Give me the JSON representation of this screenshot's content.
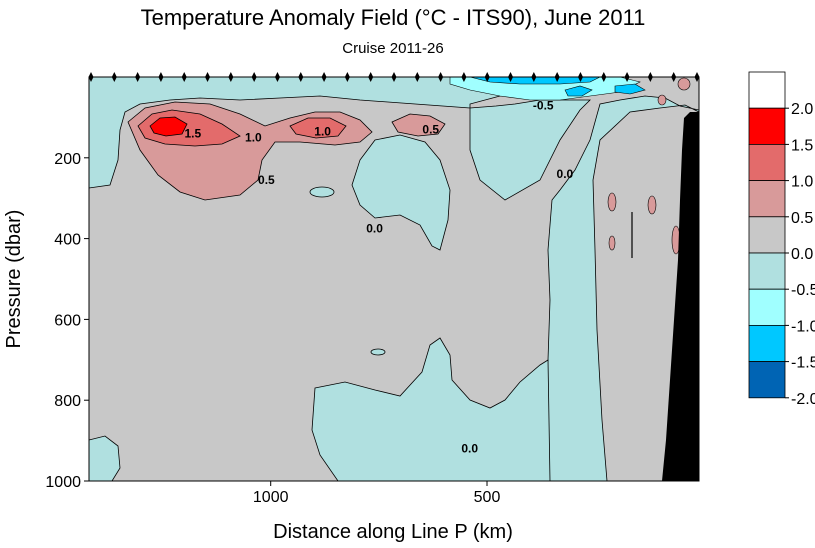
{
  "chart_data": {
    "type": "heatmap",
    "title": "Temperature Anomaly Field  (°C - ITS90),  June 2011",
    "subtitle": "Cruise 2011-26",
    "xlabel": "Distance along Line P  (km)",
    "ylabel": "Pressure  (dbar)",
    "x_ticks": [
      {
        "value": 1000,
        "label": "1000"
      },
      {
        "value": 500,
        "label": "500"
      }
    ],
    "y_ticks": [
      {
        "value": 200,
        "label": "200"
      },
      {
        "value": 400,
        "label": "400"
      },
      {
        "value": 600,
        "label": "600"
      },
      {
        "value": 800,
        "label": "800"
      },
      {
        "value": 1000,
        "label": "1000"
      }
    ],
    "xlim": [
      1420,
      10
    ],
    "ylim": [
      1000,
      0
    ],
    "colorbar": {
      "levels": [
        {
          "from": 2.0,
          "to": 2.5,
          "color": "#ffffff"
        },
        {
          "from": 1.5,
          "to": 2.0,
          "color": "#ff0000"
        },
        {
          "from": 1.0,
          "to": 1.5,
          "color": "#e36b6b"
        },
        {
          "from": 0.5,
          "to": 1.0,
          "color": "#d89a9a"
        },
        {
          "from": 0.0,
          "to": 0.5,
          "color": "#c8c8c8"
        },
        {
          "from": -0.5,
          "to": 0.0,
          "color": "#b0e0e0"
        },
        {
          "from": -1.0,
          "to": -0.5,
          "color": "#a0ffff"
        },
        {
          "from": -1.5,
          "to": -1.0,
          "color": "#00c8ff"
        },
        {
          "from": -2.0,
          "to": -1.5,
          "color": "#0064b4"
        }
      ],
      "tick_labels": [
        "2.0",
        "1.5",
        "1.0",
        "0.5",
        "0.0",
        "-0.5",
        "-1.0",
        "-1.5",
        "-2.0"
      ]
    },
    "contour_labels": [
      {
        "text": "1.5",
        "x": 1180,
        "y": 140
      },
      {
        "text": "1.0",
        "x": 1040,
        "y": 150
      },
      {
        "text": "1.0",
        "x": 880,
        "y": 135
      },
      {
        "text": "0.5",
        "x": 630,
        "y": 130
      },
      {
        "text": "0.5",
        "x": 1010,
        "y": 255
      },
      {
        "text": "-0.5",
        "x": 370,
        "y": 70
      },
      {
        "text": "0.0",
        "x": 320,
        "y": 240
      },
      {
        "text": "0.0",
        "x": 760,
        "y": 375
      },
      {
        "text": "0.0",
        "x": 540,
        "y": 920
      }
    ],
    "station_marker_count": 27,
    "bathymetry_color": "#000000",
    "grid": false
  }
}
